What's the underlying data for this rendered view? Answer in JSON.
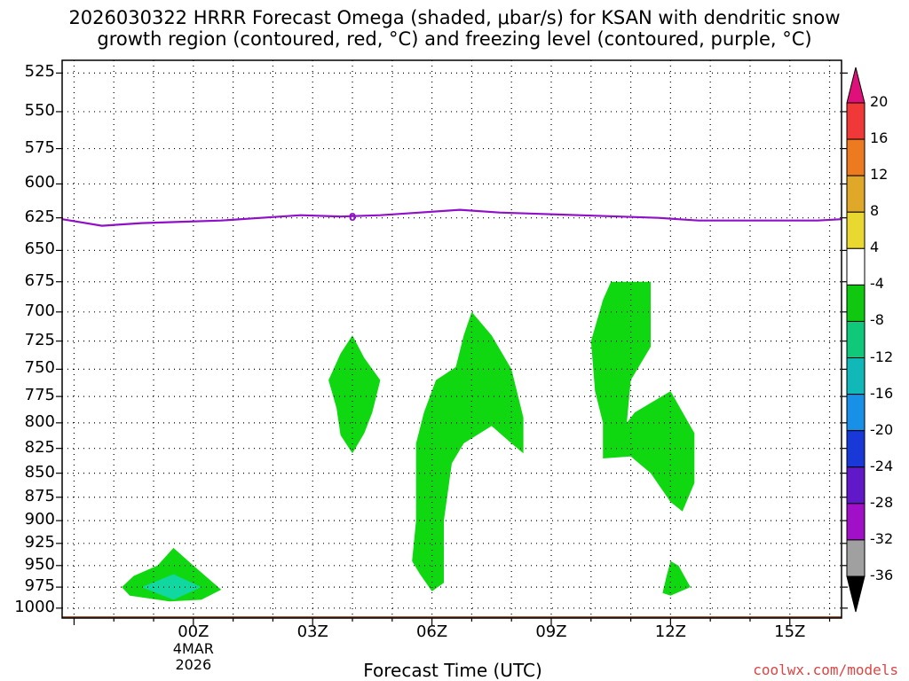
{
  "title_line1": "2026030322 HRRR Forecast Omega (shaded, μbar/s) for KSAN with dendritic snow",
  "title_line2": "growth region (contoured, red, °C) and freezing level (contoured, purple, °C)",
  "credit": "coolwx.com/models",
  "chart_data": {
    "type": "heatmap",
    "xlabel": "Forecast Time (UTC)",
    "ylabel": "",
    "y_scale": "pressure (hPa), inverted",
    "ylim": [
      1012,
      517
    ],
    "xlim_hours_from_00Z": [
      -3.3,
      16.3
    ],
    "y_ticks": [
      525,
      550,
      575,
      600,
      625,
      650,
      675,
      700,
      725,
      750,
      775,
      800,
      825,
      850,
      875,
      900,
      925,
      950,
      975,
      1000
    ],
    "y_tick_labels": [
      "525",
      "550",
      "575",
      "600",
      "625",
      "650",
      "675",
      "700",
      "725",
      "750",
      "775",
      "800",
      "825",
      "850",
      "875",
      "900",
      "925",
      "950",
      "975",
      "1000"
    ],
    "x_ticks": [
      {
        "hour": 0,
        "label": "00Z",
        "sub1": "4MAR",
        "sub2": "2026"
      },
      {
        "hour": 3,
        "label": "03Z"
      },
      {
        "hour": 6,
        "label": "06Z"
      },
      {
        "hour": 9,
        "label": "09Z"
      },
      {
        "hour": 12,
        "label": "12Z"
      },
      {
        "hour": 15,
        "label": "15Z"
      }
    ],
    "grid": true,
    "colorbar": {
      "labels": [
        "20",
        "16",
        "12",
        "8",
        "4",
        "-4",
        "-8",
        "-12",
        "-16",
        "-20",
        "-24",
        "-28",
        "-32",
        "-36"
      ],
      "colors": [
        "#e0107a",
        "#f03838",
        "#ee7a20",
        "#e0a828",
        "#e8d830",
        "#ffffff",
        "#10c810",
        "#10c87a",
        "#10b8b8",
        "#1890e8",
        "#1838d8",
        "#6018c8",
        "#a010c8",
        "#a0a0a0",
        "#000000"
      ]
    },
    "freezing_level": {
      "label": "0",
      "color": "#9010c8",
      "points": [
        [
          -3.3,
          626
        ],
        [
          -2.3,
          631
        ],
        [
          -1.3,
          629
        ],
        [
          -0.3,
          628
        ],
        [
          0.7,
          627
        ],
        [
          1.7,
          625
        ],
        [
          2.7,
          623
        ],
        [
          3.7,
          624
        ],
        [
          4.7,
          623
        ],
        [
          5.7,
          621
        ],
        [
          6.7,
          619
        ],
        [
          7.7,
          621
        ],
        [
          8.7,
          622
        ],
        [
          9.7,
          623
        ],
        [
          10.7,
          624
        ],
        [
          11.7,
          625
        ],
        [
          12.7,
          627
        ],
        [
          13.7,
          627
        ],
        [
          14.7,
          627
        ],
        [
          15.7,
          627
        ],
        [
          16.3,
          626
        ]
      ]
    },
    "shaded_regions": [
      {
        "name": "omega-8-lowlevel",
        "color": "#10d810",
        "points": [
          [
            -1.8,
            975
          ],
          [
            -1.5,
            962
          ],
          [
            -0.9,
            950
          ],
          [
            -0.5,
            930
          ],
          [
            0,
            950
          ],
          [
            0.3,
            962
          ],
          [
            0.7,
            978
          ],
          [
            0.2,
            990
          ],
          [
            -0.6,
            992
          ],
          [
            -1.6,
            985
          ]
        ]
      },
      {
        "name": "omega-12-core",
        "color": "#10d8a0",
        "points": [
          [
            -1.3,
            975
          ],
          [
            -0.5,
            960
          ],
          [
            0.2,
            975
          ],
          [
            -0.5,
            990
          ]
        ]
      },
      {
        "name": "omega-8-03z",
        "color": "#10d810",
        "points": [
          [
            3.4,
            760
          ],
          [
            3.7,
            736
          ],
          [
            4.0,
            720
          ],
          [
            4.3,
            740
          ],
          [
            4.7,
            760
          ],
          [
            4.5,
            790
          ],
          [
            4.3,
            810
          ],
          [
            4.0,
            830
          ],
          [
            3.7,
            812
          ],
          [
            3.6,
            786
          ]
        ]
      },
      {
        "name": "omega-8-06z",
        "color": "#10d810",
        "points": [
          [
            5.6,
            820
          ],
          [
            5.8,
            790
          ],
          [
            6.1,
            760
          ],
          [
            6.6,
            748
          ],
          [
            6.8,
            720
          ],
          [
            7.0,
            700
          ],
          [
            7.5,
            720
          ],
          [
            8.0,
            750
          ],
          [
            8.3,
            795
          ],
          [
            8.3,
            830
          ],
          [
            8.0,
            820
          ],
          [
            7.5,
            803
          ],
          [
            6.8,
            820
          ],
          [
            6.5,
            840
          ],
          [
            6.3,
            900
          ],
          [
            6.3,
            970
          ],
          [
            6.0,
            980
          ],
          [
            5.7,
            960
          ],
          [
            5.5,
            945
          ],
          [
            5.6,
            900
          ]
        ]
      },
      {
        "name": "omega-8-10z",
        "color": "#10d810",
        "points": [
          [
            10.0,
            725
          ],
          [
            10.3,
            690
          ],
          [
            10.5,
            675
          ],
          [
            11.5,
            675
          ],
          [
            11.5,
            730
          ],
          [
            11.0,
            760
          ],
          [
            10.9,
            800
          ],
          [
            11.1,
            790
          ],
          [
            12.0,
            770
          ],
          [
            12.6,
            810
          ],
          [
            12.6,
            860
          ],
          [
            12.3,
            890
          ],
          [
            12.0,
            880
          ],
          [
            11.5,
            850
          ],
          [
            11.0,
            833
          ],
          [
            10.3,
            835
          ],
          [
            10.3,
            800
          ],
          [
            10.1,
            770
          ]
        ]
      },
      {
        "name": "omega-8-12z-low",
        "color": "#10d810",
        "points": [
          [
            11.9,
            962
          ],
          [
            12.0,
            945
          ],
          [
            12.2,
            950
          ],
          [
            12.5,
            975
          ],
          [
            12.0,
            985
          ],
          [
            11.8,
            982
          ]
        ]
      }
    ],
    "ground": {
      "color": "#a0522d",
      "pressure": 1012
    }
  }
}
